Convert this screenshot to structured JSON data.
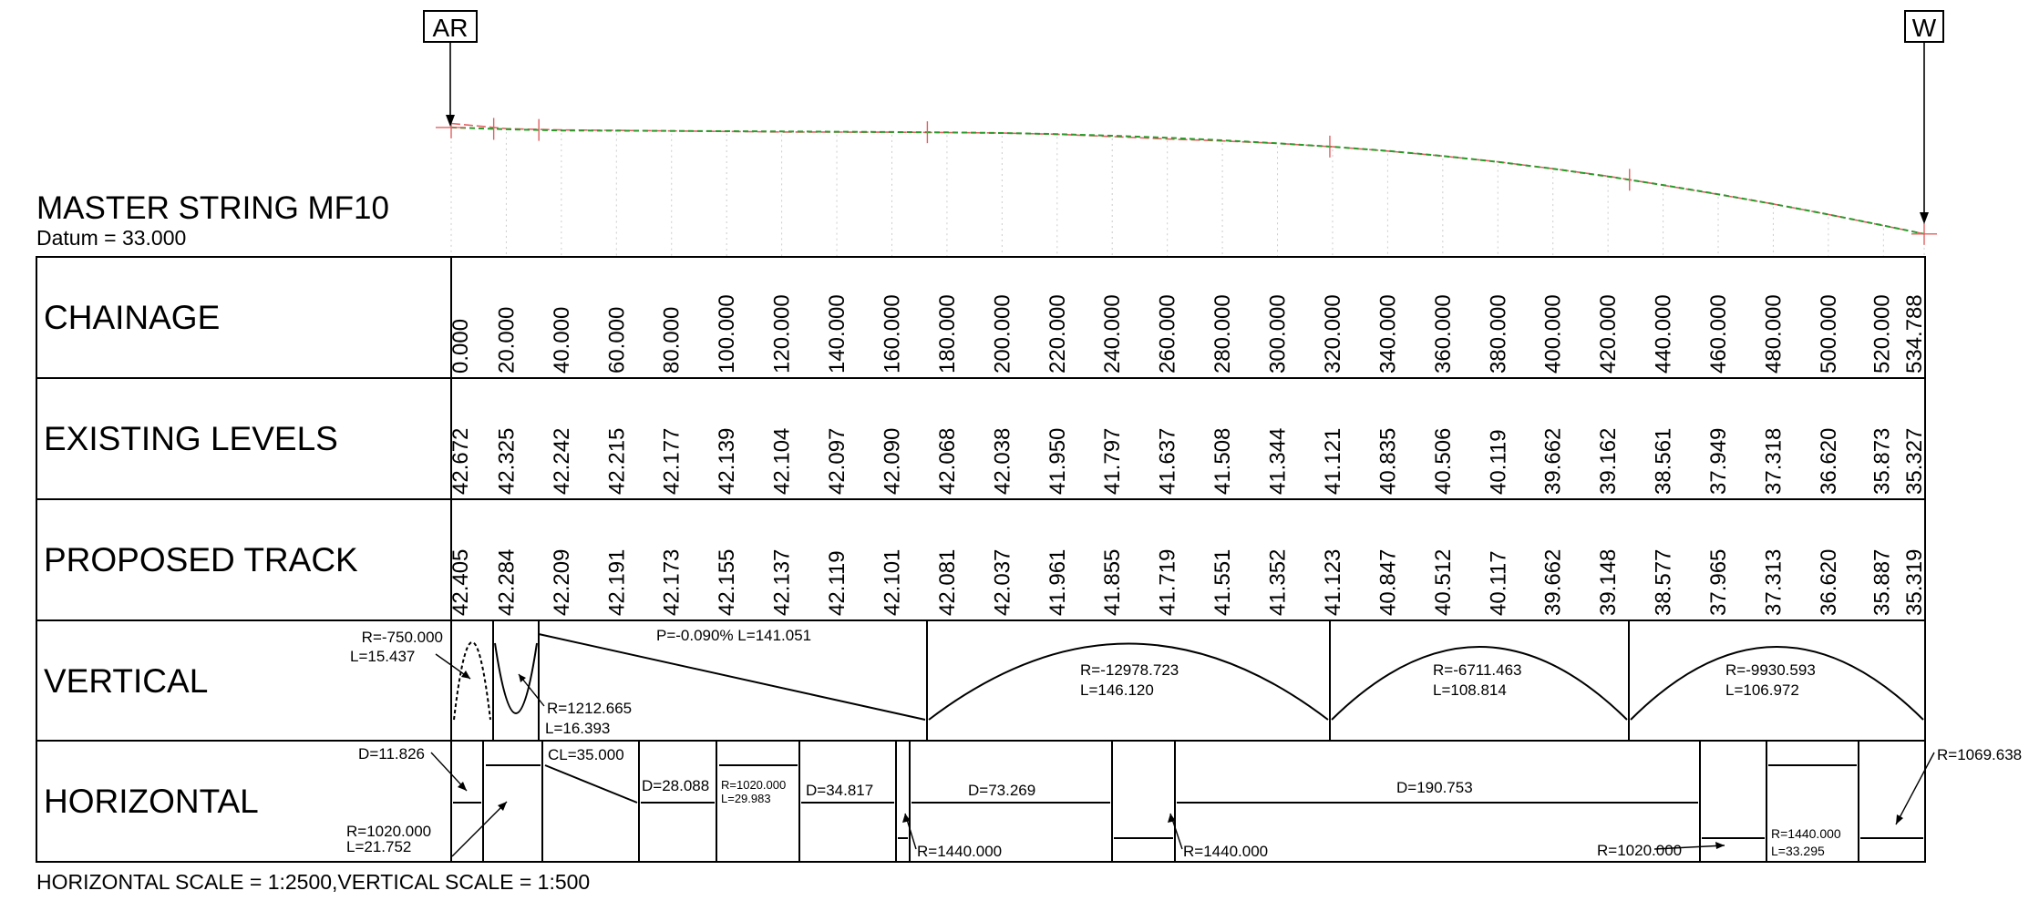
{
  "title": "MASTER STRING MF10",
  "datum": "Datum = 33.000",
  "markers": {
    "start": "AR",
    "end": "W"
  },
  "scale_note": "HORIZONTAL SCALE  = 1:2500,VERTICAL SCALE = 1:500",
  "rows": {
    "chainage": "CHAINAGE",
    "existing": "EXISTING LEVELS",
    "proposed": "PROPOSED TRACK",
    "vertical": "VERTICAL",
    "horizontal": "HORIZONTAL"
  },
  "chart_data": {
    "type": "line",
    "chainage": [
      "0.000",
      "20.000",
      "40.000",
      "60.000",
      "80.000",
      "100.000",
      "120.000",
      "140.000",
      "160.000",
      "180.000",
      "200.000",
      "220.000",
      "240.000",
      "260.000",
      "280.000",
      "300.000",
      "320.000",
      "340.000",
      "360.000",
      "380.000",
      "400.000",
      "420.000",
      "440.000",
      "460.000",
      "480.000",
      "500.000",
      "520.000",
      "534.788"
    ],
    "existing_levels": [
      "42.672",
      "42.325",
      "42.242",
      "42.215",
      "42.177",
      "42.139",
      "42.104",
      "42.097",
      "42.090",
      "42.068",
      "42.038",
      "41.950",
      "41.797",
      "41.637",
      "41.508",
      "41.344",
      "41.121",
      "40.835",
      "40.506",
      "40.119",
      "39.662",
      "39.162",
      "38.561",
      "37.949",
      "37.318",
      "36.620",
      "35.873",
      "35.327"
    ],
    "proposed_track": [
      "42.405",
      "42.284",
      "42.209",
      "42.191",
      "42.173",
      "42.155",
      "42.137",
      "42.119",
      "42.101",
      "42.081",
      "42.037",
      "41.961",
      "41.855",
      "41.719",
      "41.551",
      "41.352",
      "41.123",
      "40.847",
      "40.512",
      "40.117",
      "39.662",
      "39.148",
      "38.577",
      "37.965",
      "37.313",
      "36.620",
      "35.887",
      "35.319"
    ],
    "vertical_labels": [
      {
        "id": "v1a",
        "text": "R=-750.000"
      },
      {
        "id": "v1b",
        "text": "L=15.437"
      },
      {
        "id": "v2a",
        "text": "R=1212.665"
      },
      {
        "id": "v2b",
        "text": "L=16.393"
      },
      {
        "id": "v3",
        "text": "P=-0.090% L=141.051"
      },
      {
        "id": "v4a",
        "text": "R=-12978.723"
      },
      {
        "id": "v4b",
        "text": "L=146.120"
      },
      {
        "id": "v5a",
        "text": "R=-6711.463"
      },
      {
        "id": "v5b",
        "text": "L=108.814"
      },
      {
        "id": "v6a",
        "text": "R=-9930.593"
      },
      {
        "id": "v6b",
        "text": "L=106.972"
      }
    ],
    "horizontal_labels": [
      {
        "id": "h1",
        "text": "D=11.826"
      },
      {
        "id": "h2a",
        "text": "R=1020.000"
      },
      {
        "id": "h2b",
        "text": "L=21.752"
      },
      {
        "id": "h3",
        "text": "CL=35.000"
      },
      {
        "id": "h4",
        "text": "D=28.088"
      },
      {
        "id": "h5a",
        "text": "R=1020.000"
      },
      {
        "id": "h5b",
        "text": "L=29.983"
      },
      {
        "id": "h6",
        "text": "D=34.817"
      },
      {
        "id": "h7",
        "text": "R=1440.000"
      },
      {
        "id": "h8",
        "text": "D=73.269"
      },
      {
        "id": "h9",
        "text": "R=1440.000"
      },
      {
        "id": "h10",
        "text": "D=190.753"
      },
      {
        "id": "h11",
        "text": "R=1020.000"
      },
      {
        "id": "h12a",
        "text": "R=1440.000"
      },
      {
        "id": "h12b",
        "text": "L=33.295"
      },
      {
        "id": "h13",
        "text": "R=1069.638"
      }
    ]
  }
}
